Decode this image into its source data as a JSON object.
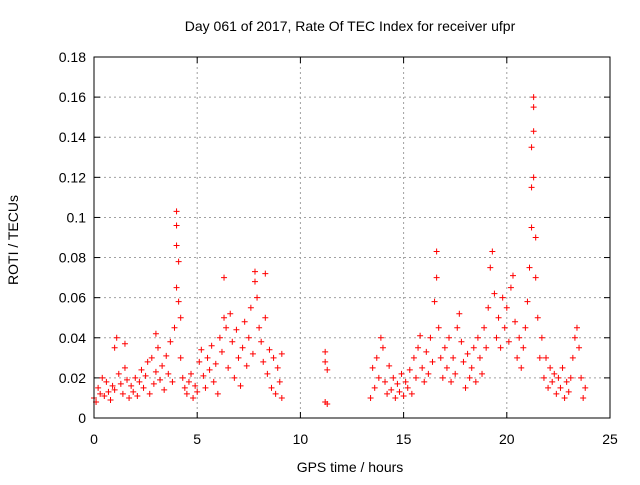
{
  "chart_data": {
    "type": "scatter",
    "title": "Day 061 of 2017, Rate Of TEC Index for receiver ufpr",
    "xlabel": "GPS time / hours",
    "ylabel": "ROTI / TECUs",
    "xlim": [
      0,
      25
    ],
    "ylim": [
      0,
      0.18
    ],
    "x_ticks": [
      "0",
      "5",
      "10",
      "15",
      "20",
      "25"
    ],
    "y_ticks": [
      "0",
      "0.02",
      "0.04",
      "0.06",
      "0.08",
      "0.1",
      "0.12",
      "0.14",
      "0.16",
      "0.18"
    ],
    "grid": true,
    "marker": "+",
    "color": "#ff0000",
    "points": [
      [
        0.0,
        0.01
      ],
      [
        0.1,
        0.008
      ],
      [
        0.2,
        0.015
      ],
      [
        0.3,
        0.012
      ],
      [
        0.4,
        0.02
      ],
      [
        0.5,
        0.011
      ],
      [
        0.6,
        0.018
      ],
      [
        0.7,
        0.013
      ],
      [
        0.8,
        0.009
      ],
      [
        0.9,
        0.016
      ],
      [
        1.0,
        0.014
      ],
      [
        1.0,
        0.035
      ],
      [
        1.1,
        0.04
      ],
      [
        1.2,
        0.022
      ],
      [
        1.3,
        0.017
      ],
      [
        1.4,
        0.012
      ],
      [
        1.5,
        0.025
      ],
      [
        1.5,
        0.037
      ],
      [
        1.6,
        0.019
      ],
      [
        1.7,
        0.01
      ],
      [
        1.8,
        0.016
      ],
      [
        1.9,
        0.013
      ],
      [
        2.0,
        0.02
      ],
      [
        2.1,
        0.011
      ],
      [
        2.2,
        0.018
      ],
      [
        2.3,
        0.024
      ],
      [
        2.4,
        0.015
      ],
      [
        2.5,
        0.021
      ],
      [
        2.6,
        0.028
      ],
      [
        2.7,
        0.012
      ],
      [
        2.8,
        0.03
      ],
      [
        2.9,
        0.017
      ],
      [
        3.0,
        0.023
      ],
      [
        3.0,
        0.042
      ],
      [
        3.1,
        0.035
      ],
      [
        3.2,
        0.019
      ],
      [
        3.3,
        0.026
      ],
      [
        3.4,
        0.014
      ],
      [
        3.5,
        0.031
      ],
      [
        3.6,
        0.022
      ],
      [
        3.7,
        0.038
      ],
      [
        3.8,
        0.018
      ],
      [
        3.9,
        0.045
      ],
      [
        4.0,
        0.103
      ],
      [
        4.0,
        0.096
      ],
      [
        4.0,
        0.086
      ],
      [
        4.0,
        0.065
      ],
      [
        4.1,
        0.078
      ],
      [
        4.1,
        0.058
      ],
      [
        4.2,
        0.05
      ],
      [
        4.2,
        0.03
      ],
      [
        4.3,
        0.02
      ],
      [
        4.4,
        0.015
      ],
      [
        4.5,
        0.012
      ],
      [
        4.6,
        0.018
      ],
      [
        4.7,
        0.022
      ],
      [
        4.8,
        0.01
      ],
      [
        4.9,
        0.016
      ],
      [
        5.0,
        0.013
      ],
      [
        5.1,
        0.028
      ],
      [
        5.2,
        0.034
      ],
      [
        5.3,
        0.021
      ],
      [
        5.4,
        0.015
      ],
      [
        5.5,
        0.03
      ],
      [
        5.6,
        0.024
      ],
      [
        5.7,
        0.036
      ],
      [
        5.8,
        0.018
      ],
      [
        5.9,
        0.027
      ],
      [
        6.0,
        0.012
      ],
      [
        6.1,
        0.04
      ],
      [
        6.2,
        0.033
      ],
      [
        6.3,
        0.05
      ],
      [
        6.3,
        0.07
      ],
      [
        6.4,
        0.045
      ],
      [
        6.5,
        0.025
      ],
      [
        6.6,
        0.052
      ],
      [
        6.7,
        0.038
      ],
      [
        6.8,
        0.02
      ],
      [
        6.9,
        0.044
      ],
      [
        7.0,
        0.03
      ],
      [
        7.1,
        0.016
      ],
      [
        7.2,
        0.035
      ],
      [
        7.3,
        0.048
      ],
      [
        7.4,
        0.026
      ],
      [
        7.5,
        0.04
      ],
      [
        7.6,
        0.055
      ],
      [
        7.7,
        0.032
      ],
      [
        7.8,
        0.068
      ],
      [
        7.8,
        0.073
      ],
      [
        7.9,
        0.06
      ],
      [
        8.0,
        0.045
      ],
      [
        8.1,
        0.038
      ],
      [
        8.2,
        0.028
      ],
      [
        8.3,
        0.072
      ],
      [
        8.3,
        0.05
      ],
      [
        8.4,
        0.022
      ],
      [
        8.5,
        0.034
      ],
      [
        8.6,
        0.015
      ],
      [
        8.7,
        0.03
      ],
      [
        8.8,
        0.012
      ],
      [
        8.9,
        0.025
      ],
      [
        9.0,
        0.018
      ],
      [
        9.1,
        0.01
      ],
      [
        9.1,
        0.032
      ],
      [
        11.2,
        0.033
      ],
      [
        11.2,
        0.028
      ],
      [
        11.3,
        0.024
      ],
      [
        11.2,
        0.008
      ],
      [
        11.3,
        0.007
      ],
      [
        13.4,
        0.01
      ],
      [
        13.5,
        0.025
      ],
      [
        13.6,
        0.015
      ],
      [
        13.7,
        0.03
      ],
      [
        13.8,
        0.02
      ],
      [
        13.9,
        0.04
      ],
      [
        14.0,
        0.035
      ],
      [
        14.1,
        0.018
      ],
      [
        14.2,
        0.012
      ],
      [
        14.3,
        0.026
      ],
      [
        14.4,
        0.014
      ],
      [
        14.5,
        0.02
      ],
      [
        14.6,
        0.01
      ],
      [
        14.7,
        0.017
      ],
      [
        14.8,
        0.013
      ],
      [
        14.9,
        0.022
      ],
      [
        15.0,
        0.011
      ],
      [
        15.1,
        0.018
      ],
      [
        15.2,
        0.015
      ],
      [
        15.3,
        0.024
      ],
      [
        15.4,
        0.012
      ],
      [
        15.5,
        0.03
      ],
      [
        15.6,
        0.02
      ],
      [
        15.7,
        0.035
      ],
      [
        15.8,
        0.041
      ],
      [
        15.9,
        0.025
      ],
      [
        16.0,
        0.018
      ],
      [
        16.1,
        0.033
      ],
      [
        16.2,
        0.022
      ],
      [
        16.3,
        0.04
      ],
      [
        16.4,
        0.028
      ],
      [
        16.5,
        0.058
      ],
      [
        16.6,
        0.083
      ],
      [
        16.6,
        0.07
      ],
      [
        16.7,
        0.045
      ],
      [
        16.8,
        0.03
      ],
      [
        16.9,
        0.02
      ],
      [
        17.0,
        0.035
      ],
      [
        17.1,
        0.025
      ],
      [
        17.2,
        0.04
      ],
      [
        17.3,
        0.018
      ],
      [
        17.4,
        0.03
      ],
      [
        17.5,
        0.022
      ],
      [
        17.6,
        0.045
      ],
      [
        17.7,
        0.052
      ],
      [
        17.8,
        0.038
      ],
      [
        17.9,
        0.028
      ],
      [
        18.0,
        0.015
      ],
      [
        18.1,
        0.032
      ],
      [
        18.2,
        0.02
      ],
      [
        18.3,
        0.025
      ],
      [
        18.4,
        0.035
      ],
      [
        18.5,
        0.018
      ],
      [
        18.6,
        0.04
      ],
      [
        18.7,
        0.03
      ],
      [
        18.8,
        0.022
      ],
      [
        18.9,
        0.045
      ],
      [
        19.0,
        0.035
      ],
      [
        19.1,
        0.055
      ],
      [
        19.2,
        0.075
      ],
      [
        19.3,
        0.083
      ],
      [
        19.4,
        0.062
      ],
      [
        19.5,
        0.04
      ],
      [
        19.6,
        0.05
      ],
      [
        19.7,
        0.035
      ],
      [
        19.8,
        0.06
      ],
      [
        19.9,
        0.045
      ],
      [
        20.0,
        0.055
      ],
      [
        20.1,
        0.038
      ],
      [
        20.2,
        0.065
      ],
      [
        20.3,
        0.071
      ],
      [
        20.4,
        0.048
      ],
      [
        20.5,
        0.03
      ],
      [
        20.6,
        0.04
      ],
      [
        20.7,
        0.025
      ],
      [
        20.8,
        0.035
      ],
      [
        20.9,
        0.045
      ],
      [
        21.0,
        0.058
      ],
      [
        21.1,
        0.075
      ],
      [
        21.2,
        0.095
      ],
      [
        21.2,
        0.115
      ],
      [
        21.2,
        0.135
      ],
      [
        21.3,
        0.143
      ],
      [
        21.3,
        0.155
      ],
      [
        21.3,
        0.16
      ],
      [
        21.3,
        0.12
      ],
      [
        21.4,
        0.09
      ],
      [
        21.4,
        0.07
      ],
      [
        21.5,
        0.05
      ],
      [
        21.6,
        0.03
      ],
      [
        21.7,
        0.04
      ],
      [
        21.8,
        0.02
      ],
      [
        21.9,
        0.03
      ],
      [
        22.0,
        0.015
      ],
      [
        22.1,
        0.025
      ],
      [
        22.2,
        0.018
      ],
      [
        22.3,
        0.022
      ],
      [
        22.4,
        0.012
      ],
      [
        22.5,
        0.02
      ],
      [
        22.6,
        0.015
      ],
      [
        22.7,
        0.025
      ],
      [
        22.8,
        0.01
      ],
      [
        22.9,
        0.018
      ],
      [
        23.0,
        0.013
      ],
      [
        23.1,
        0.02
      ],
      [
        23.2,
        0.03
      ],
      [
        23.3,
        0.04
      ],
      [
        23.4,
        0.045
      ],
      [
        23.5,
        0.035
      ],
      [
        23.6,
        0.02
      ],
      [
        23.7,
        0.01
      ],
      [
        23.8,
        0.015
      ]
    ]
  }
}
